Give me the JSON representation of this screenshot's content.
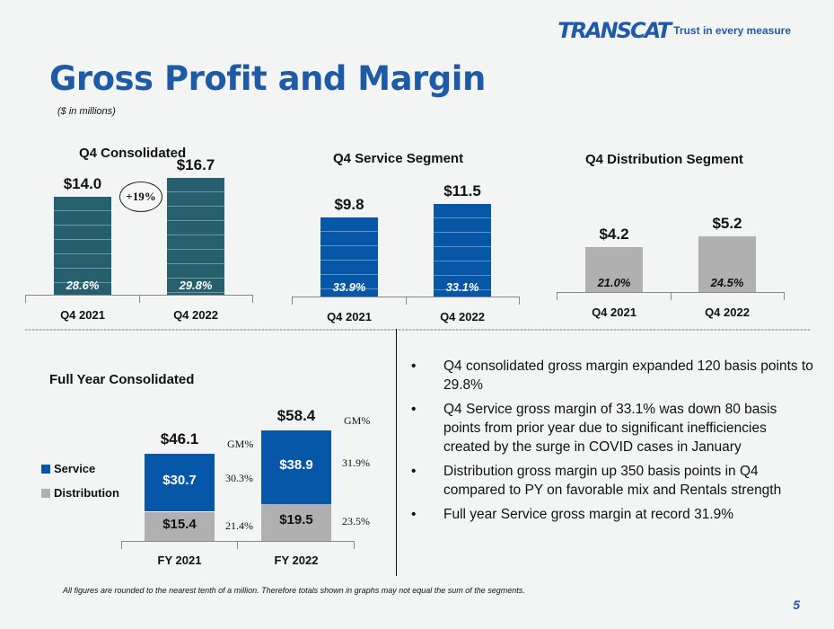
{
  "title": "Gross Profit and Margin",
  "subtitle": "($ in millions)",
  "logo": {
    "name": "TRANSCAT",
    "tagline": "Trust in every measure"
  },
  "colors": {
    "consolidated": "#265f6e",
    "service": "#0757a8",
    "distribution": "#b0b0b0",
    "title": "#1f5aa6"
  },
  "chart_data": [
    {
      "id": "q4c",
      "type": "bar",
      "title": "Q4 Consolidated",
      "categories": [
        "Q4 2021",
        "Q4 2022"
      ],
      "values": [
        14.0,
        16.7
      ],
      "value_labels": [
        "$14.0",
        "$16.7"
      ],
      "margins": [
        "28.6%",
        "29.8%"
      ],
      "annotation": "+19%",
      "color": "#265f6e",
      "gridlines": true
    },
    {
      "id": "q4s",
      "type": "bar",
      "title": "Q4 Service Segment",
      "categories": [
        "Q4 2021",
        "Q4 2022"
      ],
      "values": [
        9.8,
        11.5
      ],
      "value_labels": [
        "$9.8",
        "$11.5"
      ],
      "margins": [
        "33.9%",
        "33.1%"
      ],
      "color": "#0757a8",
      "gridlines": true
    },
    {
      "id": "q4d",
      "type": "bar",
      "title": "Q4 Distribution Segment",
      "categories": [
        "Q4 2021",
        "Q4 2022"
      ],
      "values": [
        4.2,
        5.2
      ],
      "value_labels": [
        "$4.2",
        "$5.2"
      ],
      "margins": [
        "21.0%",
        "24.5%"
      ],
      "color": "#b0b0b0",
      "gridlines": false
    },
    {
      "id": "fy",
      "type": "stacked_bar",
      "title": "Full Year Consolidated",
      "categories": [
        "FY 2021",
        "FY 2022"
      ],
      "totals": [
        46.1,
        58.4
      ],
      "total_labels": [
        "$46.1",
        "$58.4"
      ],
      "series": [
        {
          "name": "Distribution",
          "values": [
            15.4,
            19.5
          ],
          "value_labels": [
            "$15.4",
            "$19.5"
          ],
          "gm": [
            "21.4%",
            "23.5%"
          ],
          "color": "#b0b0b0"
        },
        {
          "name": "Service",
          "values": [
            30.7,
            38.9
          ],
          "value_labels": [
            "$30.7",
            "$38.9"
          ],
          "gm": [
            "30.3%",
            "31.9%"
          ],
          "color": "#0757a8"
        }
      ],
      "gm_header": "GM%",
      "legend": "left"
    }
  ],
  "bullets": [
    "Q4 consolidated gross margin expanded 120 basis points to 29.8%",
    "Q4 Service gross margin of 33.1% was down 80 basis points from prior year due to significant inefficiencies created by the surge in COVID cases in January",
    "Distribution gross margin up 350 basis points in Q4 compared to PY on favorable mix and Rentals strength",
    "Full year Service gross margin at record 31.9%"
  ],
  "bullet_glyph": "•",
  "footnote": "All figures are rounded to the nearest tenth of a million. Therefore totals shown in graphs may not equal the sum of the segments.",
  "page_number": "5"
}
